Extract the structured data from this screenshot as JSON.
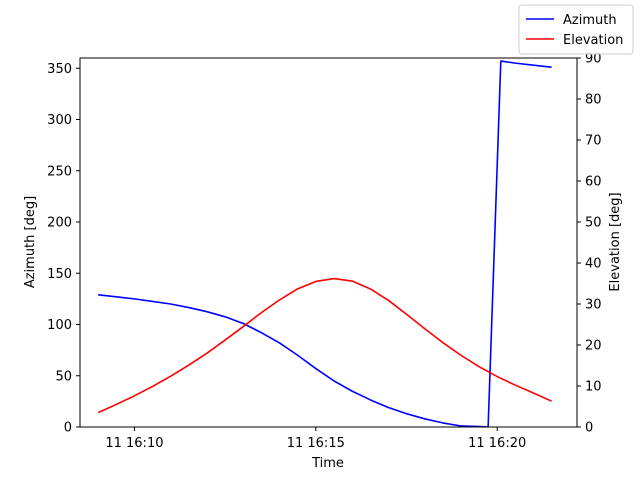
{
  "chart_data": {
    "type": "line",
    "xlabel": "Time",
    "ylabel_left": "Azimuth [deg]",
    "ylabel_right": "Elevation [deg]",
    "x_ticks": [
      {
        "minute": 10,
        "label": "11 16:10"
      },
      {
        "minute": 15,
        "label": "11 16:15"
      },
      {
        "minute": 20,
        "label": "11 16:20"
      }
    ],
    "xlim_minutes": [
      8.5,
      22.2
    ],
    "ylim_left": [
      0,
      360
    ],
    "yticks_left": [
      0,
      50,
      100,
      150,
      200,
      250,
      300,
      350
    ],
    "ylim_right": [
      0,
      90
    ],
    "yticks_right": [
      0,
      10,
      20,
      30,
      40,
      50,
      60,
      70,
      80,
      90
    ],
    "grid": false,
    "legend_position": "top-right",
    "series": [
      {
        "name": "Azimuth",
        "axis": "left",
        "color": "#0000ff",
        "x": [
          9.0,
          9.5,
          10.0,
          10.5,
          11.0,
          11.5,
          12.0,
          12.5,
          13.0,
          13.5,
          14.0,
          14.5,
          15.0,
          15.5,
          16.0,
          16.5,
          17.0,
          17.5,
          18.0,
          18.5,
          19.0,
          19.5,
          19.75,
          20.1,
          20.5,
          21.0,
          21.5
        ],
        "values": [
          129,
          127,
          125,
          122.5,
          120,
          116.5,
          112.5,
          107.5,
          101,
          92,
          82,
          70,
          57,
          45,
          35,
          26.5,
          19,
          13,
          8,
          4,
          1,
          0.5,
          0,
          357,
          355,
          353,
          351
        ]
      },
      {
        "name": "Elevation",
        "axis": "right",
        "color": "#ff0000",
        "x": [
          9.0,
          9.5,
          10.0,
          10.5,
          11.0,
          11.5,
          12.0,
          12.5,
          13.0,
          13.5,
          14.0,
          14.5,
          15.0,
          15.5,
          16.0,
          16.5,
          17.0,
          17.5,
          18.0,
          18.5,
          19.0,
          19.5,
          20.0,
          20.5,
          21.0,
          21.5
        ],
        "values": [
          3.5,
          5.5,
          7.6,
          9.9,
          12.4,
          15.1,
          18.0,
          21.2,
          24.5,
          27.9,
          31.0,
          33.7,
          35.5,
          36.2,
          35.6,
          33.7,
          30.9,
          27.5,
          24.0,
          20.6,
          17.5,
          14.7,
          12.3,
          10.2,
          8.3,
          6.3
        ]
      }
    ]
  }
}
